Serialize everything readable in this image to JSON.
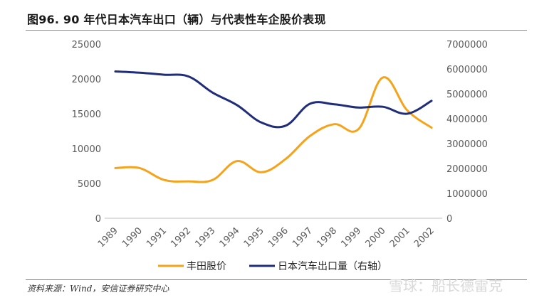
{
  "title": "图96. 90 年代日本汽车出口（辆）与代表性车企股价表现",
  "source": "资料来源：Wind，安信证券研究中心",
  "watermark": "雪球：船长德雷克",
  "colors": {
    "series1": "#F5A31A",
    "series2": "#1F2D7A"
  },
  "chart_data": {
    "type": "line",
    "x": [
      "1989",
      "1990",
      "1991",
      "1992",
      "1993",
      "1994",
      "1995",
      "1996",
      "1997",
      "1998",
      "1999",
      "2000",
      "2001",
      "2002"
    ],
    "ylim_left": [
      0,
      25000
    ],
    "yticks_left": [
      "0",
      "5000",
      "10000",
      "15000",
      "20000",
      "25000"
    ],
    "ylim_right": [
      0,
      7000000
    ],
    "yticks_right": [
      "0",
      "1000000",
      "2000000",
      "3000000",
      "4000000",
      "5000000",
      "6000000",
      "7000000"
    ],
    "legend_position": "bottom",
    "grid": false,
    "series": [
      {
        "name": "丰田股价",
        "axis": "left",
        "values": [
          7200,
          7200,
          5500,
          5300,
          5500,
          8200,
          6600,
          8500,
          11800,
          13500,
          12800,
          20200,
          15500,
          13000
        ]
      },
      {
        "name": "日本汽车出口量（右轴）",
        "axis": "right",
        "values": [
          5900000,
          5850000,
          5770000,
          5700000,
          5050000,
          4550000,
          3850000,
          3720000,
          4600000,
          4580000,
          4450000,
          4480000,
          4200000,
          4720000
        ]
      }
    ]
  }
}
